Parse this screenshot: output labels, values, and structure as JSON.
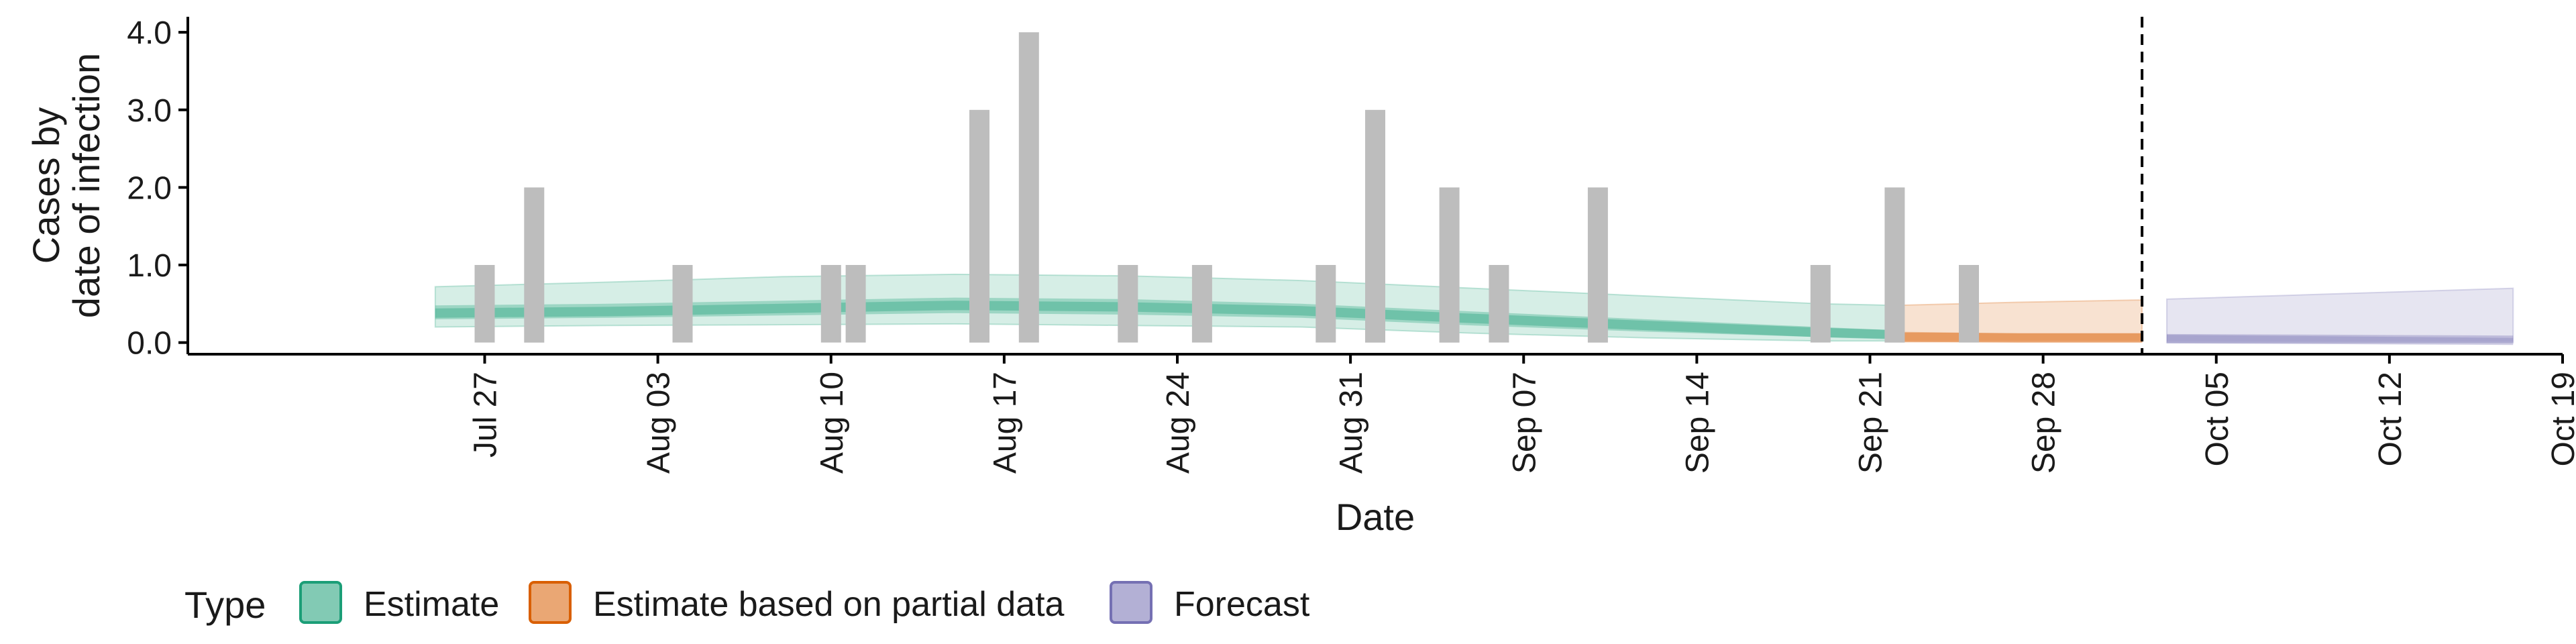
{
  "chart_data": {
    "type": "bar",
    "xlabel": "Date",
    "ylabel_lines": [
      "Cases by",
      "date of infection"
    ],
    "ylim": [
      -0.15,
      4.2
    ],
    "y_ticks": [
      0,
      1,
      2,
      3,
      4
    ],
    "y_tick_labels": [
      "0.0",
      "1.0",
      "2.0",
      "3.0",
      "4.0"
    ],
    "x_range": [
      "2020-07-15",
      "2020-10-19"
    ],
    "x_ticks": [
      "2020-07-27",
      "2020-08-03",
      "2020-08-10",
      "2020-08-17",
      "2020-08-24",
      "2020-08-31",
      "2020-09-07",
      "2020-09-14",
      "2020-09-21",
      "2020-09-28",
      "2020-10-05",
      "2020-10-12",
      "2020-10-19"
    ],
    "x_tick_labels": [
      "Jul 27",
      "Aug 03",
      "Aug 10",
      "Aug 17",
      "Aug 24",
      "Aug 31",
      "Sep 07",
      "Sep 14",
      "Sep 21",
      "Sep 28",
      "Oct 05",
      "Oct 12",
      "Oct 19"
    ],
    "forecast_cutoff": "2020-10-02",
    "bars": [
      {
        "date": "2020-07-27",
        "value": 1
      },
      {
        "date": "2020-07-29",
        "value": 2
      },
      {
        "date": "2020-08-04",
        "value": 1
      },
      {
        "date": "2020-08-10",
        "value": 1
      },
      {
        "date": "2020-08-11",
        "value": 1
      },
      {
        "date": "2020-08-16",
        "value": 3
      },
      {
        "date": "2020-08-18",
        "value": 4
      },
      {
        "date": "2020-08-22",
        "value": 1
      },
      {
        "date": "2020-08-25",
        "value": 1
      },
      {
        "date": "2020-08-30",
        "value": 1
      },
      {
        "date": "2020-09-01",
        "value": 3
      },
      {
        "date": "2020-09-04",
        "value": 2
      },
      {
        "date": "2020-09-06",
        "value": 1
      },
      {
        "date": "2020-09-10",
        "value": 2
      },
      {
        "date": "2020-09-19",
        "value": 1
      },
      {
        "date": "2020-09-22",
        "value": 2
      },
      {
        "date": "2020-09-25",
        "value": 1
      }
    ],
    "bar_color": "#bdbdbd",
    "legend_title": "Type",
    "legend_position": "bottom",
    "series": [
      {
        "name": "Estimate",
        "color": "#1b9e77",
        "bands": [
          {
            "dates": [
              "2020-07-25",
              "2020-08-01",
              "2020-08-08",
              "2020-08-15",
              "2020-08-22",
              "2020-08-29",
              "2020-09-05",
              "2020-09-12",
              "2020-09-19",
              "2020-09-22"
            ],
            "outer_lower": [
              0.2,
              0.22,
              0.23,
              0.24,
              0.22,
              0.2,
              0.12,
              0.06,
              0.02,
              0.02
            ],
            "outer_upper": [
              0.72,
              0.78,
              0.85,
              0.88,
              0.86,
              0.8,
              0.7,
              0.6,
              0.5,
              0.48
            ],
            "inner_lower": [
              0.3,
              0.32,
              0.35,
              0.38,
              0.36,
              0.32,
              0.22,
              0.14,
              0.07,
              0.05
            ],
            "inner_upper": [
              0.48,
              0.5,
              0.54,
              0.58,
              0.56,
              0.5,
              0.4,
              0.3,
              0.2,
              0.16
            ],
            "median": [
              0.38,
              0.4,
              0.44,
              0.48,
              0.46,
              0.41,
              0.31,
              0.22,
              0.13,
              0.1
            ]
          }
        ]
      },
      {
        "name": "Estimate based on partial data",
        "color": "#d95f02",
        "bands": [
          {
            "dates": [
              "2020-09-22",
              "2020-09-27",
              "2020-10-02"
            ],
            "outer_lower": [
              0.01,
              0.01,
              0.01
            ],
            "outer_upper": [
              0.48,
              0.52,
              0.55
            ],
            "inner_lower": [
              0.02,
              0.02,
              0.02
            ],
            "inner_upper": [
              0.14,
              0.12,
              0.12
            ],
            "median": [
              0.07,
              0.06,
              0.06
            ]
          }
        ]
      },
      {
        "name": "Forecast",
        "color": "#7570b3",
        "bands": [
          {
            "dates": [
              "2020-10-03",
              "2020-10-10",
              "2020-10-17"
            ],
            "outer_lower": [
              0.0,
              0.0,
              0.0
            ],
            "outer_upper": [
              0.56,
              0.63,
              0.7
            ],
            "inner_lower": [
              0.01,
              0.01,
              0.01
            ],
            "inner_upper": [
              0.1,
              0.08,
              0.06
            ],
            "median": [
              0.05,
              0.04,
              0.03
            ]
          }
        ]
      }
    ]
  }
}
